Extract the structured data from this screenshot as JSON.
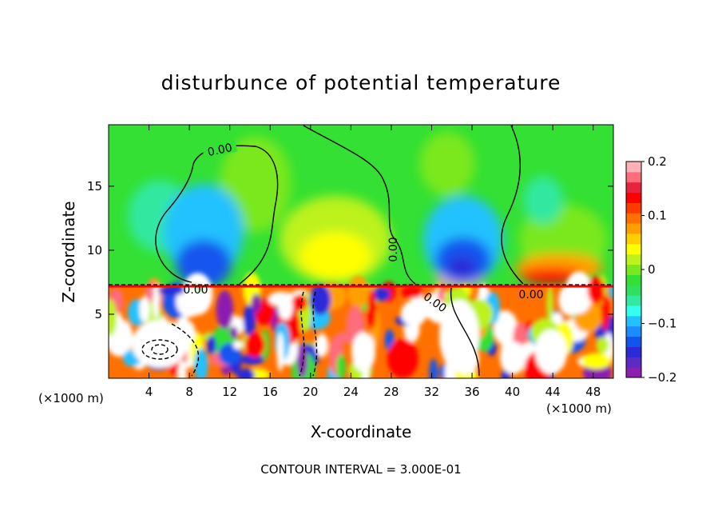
{
  "chart_data": {
    "type": "heatmap",
    "title": "disturbunce of potential temperature",
    "xlabel": "X-coordinate",
    "ylabel": "Z-coordinate",
    "x_unit_left": "(×1000 m)",
    "x_unit_right": "(×1000 m)",
    "xlim": [
      0,
      50
    ],
    "ylim": [
      0,
      19.8
    ],
    "x_ticks": [
      4,
      8,
      12,
      16,
      20,
      24,
      28,
      32,
      36,
      40,
      44,
      48
    ],
    "x_tick_labels": [
      "4",
      "8",
      "12",
      "16",
      "20",
      "24",
      "28",
      "32",
      "36",
      "40",
      "44",
      "48"
    ],
    "y_ticks": [
      5,
      10,
      15
    ],
    "y_tick_labels": [
      "5",
      "10",
      "15"
    ],
    "contour_interval_text": "CONTOUR INTERVAL = 3.000E-01",
    "contour_labels": [
      "0.00",
      "0.00",
      "0.00",
      "0.00",
      "0.00"
    ],
    "colorbar": {
      "min": -0.2,
      "max": 0.2,
      "ticks": [
        0.2,
        0.1,
        0,
        -0.1,
        -0.2
      ],
      "tick_labels": [
        "0.2",
        "0.1",
        "0",
        "−0.1",
        "−0.2"
      ],
      "colors": [
        "#8b1fb0",
        "#5b2cc4",
        "#2a2ad8",
        "#1255ee",
        "#1a8cff",
        "#22c1ff",
        "#33ffee",
        "#33e8a0",
        "#2ee05a",
        "#34e034",
        "#7ae81e",
        "#bdf21a",
        "#ffff00",
        "#ffd000",
        "#ffa000",
        "#ff7000",
        "#ff3a00",
        "#ff0000",
        "#e8243c",
        "#ff6c7a",
        "#ffb0b8"
      ]
    },
    "field_features": [
      {
        "kind": "negative_anomaly",
        "x": 10,
        "z": 10
      },
      {
        "kind": "negative_anomaly",
        "x": 35,
        "z": 9.5
      },
      {
        "kind": "positive_anomaly",
        "x": 22,
        "z": 10.5
      },
      {
        "kind": "positive_anomaly",
        "x": 44,
        "z": 8.5
      },
      {
        "kind": "turbulent_layer",
        "z_top": 7.2
      }
    ]
  },
  "colors": {
    "background_field": "#33e033"
  }
}
